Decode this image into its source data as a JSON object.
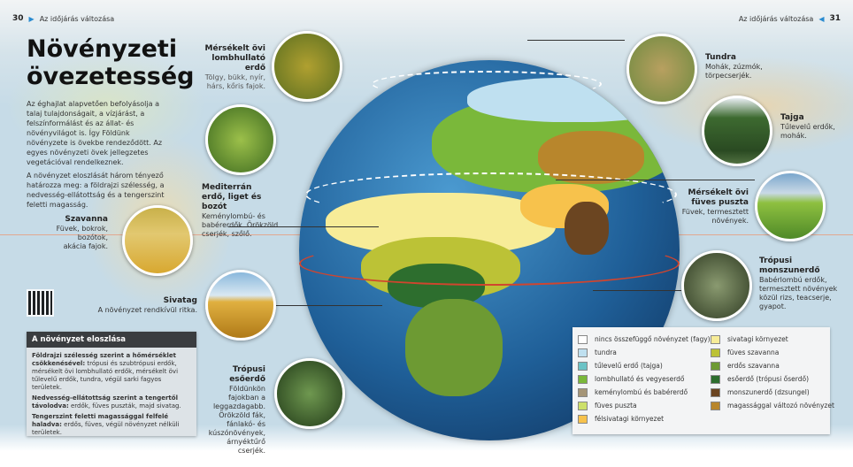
{
  "header": {
    "left_page": "30",
    "right_page": "31",
    "section": "Az időjárás változása"
  },
  "title": "Növényzeti övezetesség",
  "intro": [
    "Az éghajlat alapvetően befolyásolja a talaj tulajdonságait, a vízjárást, a felszínformálást és az állat- és növényvilágot is. Így Földünk növényzete is övekbe rendeződött. Az egyes növényzeti övek jellegzetes vegetációval rendelkeznek.",
    "A növényzet eloszlását három tényező határozza meg: a földrajzi szélesség, a nedvesség-ellátottság és a tengerszint feletti magasság."
  ],
  "zones": [
    {
      "title": "Mérsékelt övi lombhullató erdő",
      "desc": "Tölgy, bükk, nyír, hárs, kőris fajok."
    },
    {
      "title": "Mediterrán erdő, liget és bozót",
      "desc": "Keménylombú- és babérerdők. Örökzöld cserjék, szőlő."
    },
    {
      "title": "Szavanna",
      "desc": "Füvek, bokrok, bozótok, akácia fajok."
    },
    {
      "title": "Sivatag",
      "desc": "A növényzet rendkívül ritka."
    },
    {
      "title": "Trópusi esőerdő",
      "desc": "Földünkön fajokban a leggazdagabb. Örökzöld fák, fánlakó- és kúszónövények, árnyéktűrő cserjék."
    },
    {
      "title": "Tundra",
      "desc": "Mohák, zúzmók, törpecserjék."
    },
    {
      "title": "Tajga",
      "desc": "Tűlevelű erdők, mohák."
    },
    {
      "title": "Mérsékelt övi füves puszta",
      "desc": "Füvek, termesztett növények."
    },
    {
      "title": "Trópusi monszunerdő",
      "desc": "Babérlombú erdők, termesztett növények közül rizs, teacserje, gyapot."
    }
  ],
  "box": {
    "title": "A növényzet eloszlása",
    "items": [
      {
        "bold": "Földrajzi szélesség szerint a hőmérséklet csökkenésével:",
        "text": " trópusi és szubtrópusi erdők, mérsékelt övi lombhullató erdők, mérsékelt övi tűlevelű erdők, tundra, végül sarki fagyos területek."
      },
      {
        "bold": "Nedvesség-ellátottság szerint a tengertől távolodva:",
        "text": " erdők, füves puszták, majd sivatag."
      },
      {
        "bold": "Tengerszint feletti magassággal felfelé haladva:",
        "text": " erdős, füves, végül növényzet nélküli területek."
      }
    ]
  },
  "legend": [
    {
      "label": "nincs összefüggő növényzet (fagy)",
      "color": "#ffffff"
    },
    {
      "label": "tundra",
      "color": "#bfe0f0"
    },
    {
      "label": "tűlevelű erdő (tajga)",
      "color": "#6cc3c6"
    },
    {
      "label": "lombhullató és vegyeserdő",
      "color": "#7ab83a"
    },
    {
      "label": "keménylombú és babérerdő",
      "color": "#a59577"
    },
    {
      "label": "füves puszta",
      "color": "#cde06a"
    },
    {
      "label": "félsivatagi környezet",
      "color": "#f7c24c"
    },
    {
      "label": "sivatagi környezet",
      "color": "#f7ec98"
    },
    {
      "label": "füves szavanna",
      "color": "#bcc236"
    },
    {
      "label": "erdős szavanna",
      "color": "#6d9a33"
    },
    {
      "label": "esőerdő (trópusi őserdő)",
      "color": "#2d6e2e"
    },
    {
      "label": "monszunerdő (dzsungel)",
      "color": "#6b4521"
    },
    {
      "label": "magassággal változó növényzet",
      "color": "#b8862c"
    }
  ]
}
